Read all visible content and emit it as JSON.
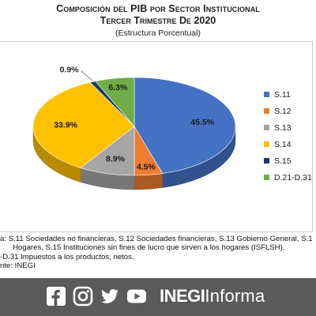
{
  "header": {
    "title_line1": "Composición del PIB por Sector Institucional",
    "title_line2": "Tercer Trimestre De 2020",
    "subtitle": "(Estructura Porcentual)"
  },
  "chart_data": {
    "type": "pie",
    "title": "Composición del PIB por Sector Institucional Tercer Trimestre De 2020",
    "subtitle": "(Estructura Porcentual)",
    "legend_position": "right",
    "categories": [
      "S.11",
      "S.12",
      "S.13",
      "S.14",
      "S.15",
      "D.21-D.31"
    ],
    "values": [
      45.5,
      4.5,
      8.9,
      33.9,
      0.9,
      6.3
    ],
    "labels": [
      "45.5%",
      "4.5%",
      "8.9%",
      "33.9%",
      "0.9%",
      "6.3%"
    ],
    "colors": [
      "#4472C4",
      "#ED7D31",
      "#A5A5A5",
      "#FFC000",
      "#1F3864",
      "#70AD47"
    ]
  },
  "notes": {
    "line1": "a: S.11 Sociedades no financieras, S.12 Sociedades financieras, S.13 Gobierno General, S.1",
    "line2": "      Hogares, S.15 Instituciones sin fines de lucro que sirven a los hogares (ISFLSH).",
    "line3": "-D.31 Impuestos a los productos, netos.",
    "line4": "nte: INEGI"
  },
  "footer": {
    "social_icons": [
      "facebook-icon",
      "instagram-icon",
      "twitter-icon",
      "youtube-icon"
    ],
    "brand_bold": "INEGI",
    "brand_light": "Informa"
  }
}
